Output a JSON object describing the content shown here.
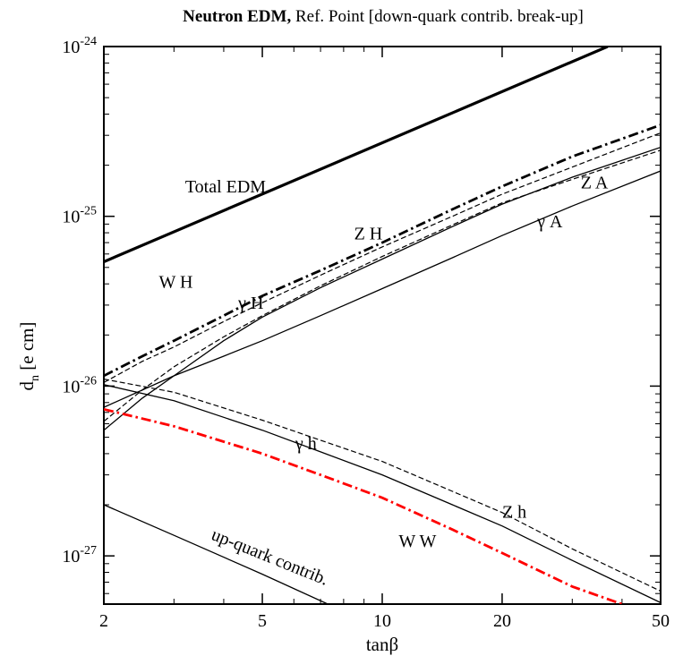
{
  "chart_data": {
    "type": "line",
    "title_bold": "Neutron EDM,",
    "title_rest": " Ref. Point [down-quark contrib. break-up]",
    "xlabel": "tanβ",
    "ylabel": "d_n [e cm]",
    "ylabel_main": "d",
    "ylabel_sub": "n",
    "ylabel_unit": " [e cm]",
    "x_scale": "log",
    "y_scale": "log",
    "xlim": [
      2,
      50
    ],
    "ylim": [
      5.2e-28,
      1e-24
    ],
    "x_ticks": [
      {
        "value": 2,
        "label": "2"
      },
      {
        "value": 5,
        "label": "5"
      },
      {
        "value": 10,
        "label": "10"
      },
      {
        "value": 20,
        "label": "20"
      },
      {
        "value": 50,
        "label": "50"
      }
    ],
    "y_ticks": [
      {
        "value": 1e-27,
        "base": "10",
        "exp": "-27"
      },
      {
        "value": 1e-26,
        "base": "10",
        "exp": "-26"
      },
      {
        "value": 1e-25,
        "base": "10",
        "exp": "-25"
      },
      {
        "value": 1e-24,
        "base": "10",
        "exp": "-24"
      }
    ],
    "grid": false,
    "series": [
      {
        "name": "Total EDM",
        "style": "thick-solid",
        "color": "#000000",
        "x": [
          2,
          36.8
        ],
        "y": [
          5.4e-26,
          1e-24
        ]
      },
      {
        "name": "W H",
        "style": "dashdot-thick",
        "color": "#000000",
        "x": [
          2,
          2.5,
          3,
          4,
          5,
          7,
          10,
          15,
          20,
          30,
          50
        ],
        "y": [
          1.15e-26,
          1.5e-26,
          1.85e-26,
          2.6e-26,
          3.4e-26,
          4.8e-26,
          7e-26,
          1.1e-25,
          1.5e-25,
          2.25e-25,
          3.45e-25
        ]
      },
      {
        "name": "Z H",
        "style": "dashed",
        "color": "#000000",
        "x": [
          2,
          2.5,
          3,
          4,
          5,
          7,
          10,
          15,
          20,
          30,
          50
        ],
        "y": [
          1.05e-26,
          1.4e-26,
          1.7e-26,
          2.4e-26,
          3.1e-26,
          4.5e-26,
          6.6e-26,
          1e-25,
          1.35e-25,
          1.95e-25,
          3.1e-25
        ]
      },
      {
        "name": "Z A",
        "style": "dashed",
        "color": "#000000",
        "x": [
          2,
          2.5,
          3,
          4,
          5,
          7,
          10,
          15,
          20,
          30,
          50
        ],
        "y": [
          6.2e-27,
          9.5e-27,
          1.3e-26,
          1.95e-26,
          2.6e-26,
          3.9e-26,
          5.8e-26,
          8.9e-26,
          1.2e-25,
          1.65e-25,
          2.45e-25
        ]
      },
      {
        "name": "γ H",
        "style": "solid",
        "color": "#000000",
        "x": [
          2,
          2.5,
          3,
          4,
          5,
          7,
          10,
          15,
          20,
          30,
          50
        ],
        "y": [
          5.5e-27,
          8.5e-27,
          1.15e-26,
          1.85e-26,
          2.55e-26,
          3.8e-26,
          5.6e-26,
          8.7e-26,
          1.18e-25,
          1.7e-25,
          2.55e-25
        ]
      },
      {
        "name": "γ A",
        "style": "solid",
        "color": "#000000",
        "x": [
          2,
          3,
          4,
          5,
          7,
          10,
          15,
          20,
          30,
          50
        ],
        "y": [
          7.5e-27,
          1.15e-26,
          1.5e-26,
          1.85e-26,
          2.6e-26,
          3.75e-26,
          5.7e-26,
          7.7e-26,
          1.15e-25,
          1.85e-25
        ]
      },
      {
        "name": "Z h",
        "style": "dashed",
        "color": "#000000",
        "x": [
          2,
          3,
          5,
          7,
          10,
          15,
          20,
          30,
          50
        ],
        "y": [
          1.1e-26,
          9.2e-27,
          6.3e-27,
          4.8e-27,
          3.6e-27,
          2.4e-27,
          1.8e-27,
          1.1e-27,
          6.2e-28
        ]
      },
      {
        "name": "γ h",
        "style": "solid",
        "color": "#000000",
        "x": [
          2,
          3,
          5,
          7,
          10,
          15,
          20,
          30,
          50
        ],
        "y": [
          1.02e-26,
          8.2e-27,
          5.5e-27,
          4.1e-27,
          3e-27,
          2e-27,
          1.5e-27,
          9.4e-28,
          5.3e-28
        ]
      },
      {
        "name": "W W",
        "style": "dashdot-red",
        "color": "#ff0000",
        "x": [
          2,
          3,
          5,
          7,
          10,
          15,
          20,
          30,
          40
        ],
        "y": [
          7.3e-27,
          5.8e-27,
          4e-27,
          3e-27,
          2.2e-27,
          1.43e-27,
          1.04e-27,
          6.6e-28,
          5.2e-28
        ]
      },
      {
        "name": "up-quark contrib.",
        "style": "solid",
        "color": "#000000",
        "x": [
          2,
          3,
          5,
          7.3
        ],
        "y": [
          2e-27,
          1.32e-27,
          7.8e-28,
          5.2e-28
        ]
      }
    ],
    "annotations": [
      {
        "text": "Total EDM",
        "x": 3.2,
        "y": 1.38e-25,
        "rotate": 0
      },
      {
        "text": "W H",
        "x": 2.75,
        "y": 3.8e-26,
        "rotate": 0
      },
      {
        "text": "Z H",
        "x": 8.5,
        "y": 7.3e-26,
        "rotate": 0
      },
      {
        "text": "Z A",
        "x": 31.5,
        "y": 1.46e-25,
        "rotate": 0
      },
      {
        "text": "γ A",
        "x": 24.5,
        "y": 8.6e-26,
        "rotate": 0
      },
      {
        "text": "γ H",
        "x": 4.35,
        "y": 2.85e-26,
        "rotate": 0
      },
      {
        "text": "γ h",
        "x": 6.05,
        "y": 4.25e-27,
        "rotate": 0
      },
      {
        "text": "Z h",
        "x": 20,
        "y": 1.68e-27,
        "rotate": 0
      },
      {
        "text": "W W",
        "x": 11,
        "y": 1.13e-27,
        "rotate": 0
      },
      {
        "text": "up-quark contrib.",
        "x": 3.7,
        "y": 1.26e-27,
        "rotate": 22
      }
    ]
  }
}
